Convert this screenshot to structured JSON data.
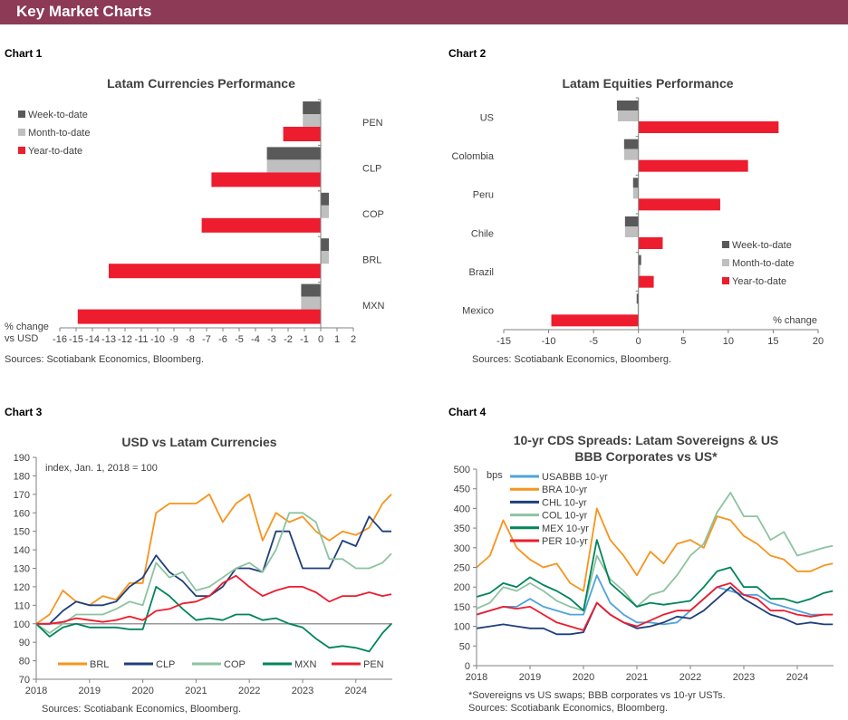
{
  "header": {
    "title": "Key Market Charts",
    "color": "#8C3A55"
  },
  "charts_labels": [
    "Chart 1",
    "Chart 2",
    "Chart 3",
    "Chart 4"
  ],
  "colors": {
    "week": "#595959",
    "month": "#BFBFBF",
    "ytd": "#ED1C2E"
  },
  "chart_data": [
    {
      "type": "bar",
      "orientation": "horizontal",
      "title": "Latam Currencies Performance",
      "categories": [
        "PEN",
        "CLP",
        "COP",
        "BRL",
        "MXN"
      ],
      "series": [
        {
          "name": "Week-to-date",
          "color": "#595959",
          "values": [
            -1.1,
            -3.3,
            0.5,
            0.5,
            -1.2
          ]
        },
        {
          "name": "Month-to-date",
          "color": "#BFBFBF",
          "values": [
            -1.1,
            -3.3,
            0.5,
            0.5,
            -1.2
          ]
        },
        {
          "name": "Year-to-date",
          "color": "#ED1C2E",
          "values": [
            -2.3,
            -6.7,
            -7.3,
            -13.0,
            -14.9
          ]
        }
      ],
      "xlabel": [
        "% change",
        "vs USD"
      ],
      "xlim": [
        -16,
        2
      ],
      "xticks": [
        -16,
        -15,
        -14,
        -13,
        -12,
        -11,
        -10,
        -9,
        -8,
        -7,
        -6,
        -5,
        -4,
        -3,
        -2,
        -1,
        0,
        1,
        2
      ],
      "legend": "top-left",
      "source": "Sources: Scotiabank Economics, Bloomberg."
    },
    {
      "type": "bar",
      "orientation": "horizontal",
      "title": "Latam Equities Performance",
      "categories": [
        "US",
        "Colombia",
        "Peru",
        "Chile",
        "Brazil",
        "Mexico"
      ],
      "series": [
        {
          "name": "Week-to-date",
          "color": "#595959",
          "values": [
            -2.4,
            -1.6,
            -0.6,
            -1.5,
            0.3,
            -0.2
          ]
        },
        {
          "name": "Month-to-date",
          "color": "#BFBFBF",
          "values": [
            -2.3,
            -1.6,
            -0.6,
            -1.5,
            0.2,
            -0.1
          ]
        },
        {
          "name": "Year-to-date",
          "color": "#ED1C2E",
          "values": [
            15.6,
            12.2,
            9.1,
            2.7,
            1.7,
            -9.7
          ]
        }
      ],
      "xlabel": "% change",
      "xlim": [
        -15,
        20
      ],
      "xticks": [
        -15,
        -10,
        -5,
        0,
        5,
        10,
        15,
        20
      ],
      "legend": "bottom-right",
      "source": "Sources: Scotiabank Economics, Bloomberg."
    },
    {
      "type": "line",
      "title": "USD vs Latam Currencies",
      "annotation": "index, Jan. 1, 2018 = 100",
      "x": [
        "2018-01",
        "2018-04",
        "2018-07",
        "2018-10",
        "2019-01",
        "2019-04",
        "2019-07",
        "2019-10",
        "2020-01",
        "2020-04",
        "2020-07",
        "2020-10",
        "2021-01",
        "2021-04",
        "2021-07",
        "2021-10",
        "2022-01",
        "2022-04",
        "2022-07",
        "2022-10",
        "2023-01",
        "2023-04",
        "2023-07",
        "2023-10",
        "2024-01",
        "2024-04",
        "2024-07",
        "2024-09"
      ],
      "series": [
        {
          "name": "BRL",
          "color": "#F7941D",
          "values": [
            100,
            105,
            118,
            112,
            110,
            115,
            113,
            122,
            122,
            160,
            165,
            165,
            165,
            170,
            155,
            165,
            170,
            145,
            160,
            155,
            158,
            150,
            145,
            150,
            148,
            152,
            165,
            170
          ]
        },
        {
          "name": "CLP",
          "color": "#1F3F7A",
          "values": [
            100,
            100,
            107,
            112,
            110,
            110,
            112,
            120,
            125,
            137,
            128,
            123,
            115,
            115,
            120,
            130,
            130,
            128,
            150,
            150,
            130,
            130,
            130,
            145,
            142,
            158,
            150,
            150
          ]
        },
        {
          "name": "COP",
          "color": "#8DC3A0",
          "values": [
            100,
            95,
            100,
            105,
            105,
            105,
            108,
            112,
            110,
            133,
            125,
            128,
            118,
            120,
            125,
            130,
            133,
            128,
            140,
            160,
            160,
            155,
            135,
            135,
            130,
            130,
            133,
            138
          ]
        },
        {
          "name": "MXN",
          "color": "#00845A",
          "values": [
            100,
            93,
            98,
            100,
            98,
            98,
            98,
            97,
            97,
            120,
            115,
            108,
            102,
            103,
            102,
            105,
            105,
            102,
            103,
            100,
            98,
            92,
            87,
            88,
            87,
            85,
            95,
            100
          ]
        },
        {
          "name": "PEN",
          "color": "#ED1C2E",
          "values": [
            100,
            100,
            101,
            103,
            102,
            101,
            102,
            104,
            102,
            107,
            108,
            111,
            112,
            115,
            122,
            126,
            120,
            115,
            118,
            120,
            120,
            117,
            112,
            115,
            115,
            117,
            115,
            116
          ]
        }
      ],
      "reference_line": 100,
      "ylim": [
        70,
        190
      ],
      "yticks": [
        70,
        80,
        90,
        100,
        110,
        120,
        130,
        140,
        150,
        160,
        170,
        180,
        190
      ],
      "xticks": [
        "2018",
        "2019",
        "2020",
        "2021",
        "2022",
        "2023",
        "2024"
      ],
      "legend": "bottom",
      "source": "Sources: Scotiabank Economics, Bloomberg."
    },
    {
      "type": "line",
      "title": [
        "10-yr CDS Spreads: Latam Sovereigns & US",
        "BBB Corporates vs US*"
      ],
      "ylabel": "bps",
      "x": [
        "2018-01",
        "2018-04",
        "2018-07",
        "2018-10",
        "2019-01",
        "2019-04",
        "2019-07",
        "2019-10",
        "2020-01",
        "2020-04",
        "2020-07",
        "2020-10",
        "2021-01",
        "2021-04",
        "2021-07",
        "2021-10",
        "2022-01",
        "2022-04",
        "2022-07",
        "2022-10",
        "2023-01",
        "2023-04",
        "2023-07",
        "2023-10",
        "2024-01",
        "2024-04",
        "2024-07",
        "2024-09"
      ],
      "series": [
        {
          "name": "USABBB 10-yr",
          "color": "#4FA3DB",
          "values": [
            130,
            140,
            150,
            150,
            170,
            150,
            140,
            130,
            130,
            230,
            160,
            130,
            110,
            110,
            105,
            110,
            140,
            170,
            200,
            190,
            180,
            180,
            160,
            150,
            140,
            130,
            130,
            130
          ]
        },
        {
          "name": "BRA 10-yr",
          "color": "#F7941D",
          "values": [
            250,
            280,
            370,
            300,
            270,
            250,
            260,
            210,
            190,
            400,
            320,
            280,
            230,
            290,
            260,
            310,
            320,
            300,
            380,
            370,
            330,
            310,
            280,
            270,
            240,
            240,
            255,
            260
          ]
        },
        {
          "name": "CHL 10-yr",
          "color": "#1F3F7A",
          "values": [
            95,
            100,
            105,
            100,
            95,
            95,
            80,
            80,
            85,
            160,
            130,
            110,
            95,
            100,
            110,
            125,
            120,
            140,
            170,
            200,
            170,
            150,
            130,
            120,
            105,
            110,
            105,
            105
          ]
        },
        {
          "name": "COL 10-yr",
          "color": "#8DC3A0",
          "values": [
            145,
            160,
            200,
            190,
            210,
            190,
            165,
            150,
            140,
            280,
            220,
            190,
            150,
            180,
            190,
            230,
            280,
            310,
            390,
            440,
            380,
            380,
            320,
            340,
            280,
            290,
            300,
            305
          ]
        },
        {
          "name": "MEX 10-yr",
          "color": "#00845A",
          "values": [
            175,
            185,
            210,
            200,
            225,
            205,
            190,
            170,
            140,
            320,
            210,
            180,
            150,
            160,
            155,
            160,
            165,
            200,
            240,
            250,
            200,
            200,
            170,
            170,
            160,
            170,
            185,
            190
          ]
        },
        {
          "name": "PER 10-yr",
          "color": "#ED1C2E",
          "values": [
            130,
            140,
            150,
            145,
            150,
            130,
            110,
            100,
            90,
            160,
            130,
            110,
            100,
            115,
            130,
            140,
            140,
            170,
            200,
            210,
            180,
            170,
            140,
            140,
            130,
            125,
            130,
            130
          ]
        }
      ],
      "ylim": [
        0,
        500
      ],
      "yticks": [
        0,
        50,
        100,
        150,
        200,
        250,
        300,
        350,
        400,
        450,
        500
      ],
      "xticks": [
        "2018",
        "2019",
        "2020",
        "2021",
        "2022",
        "2023",
        "2024"
      ],
      "legend": "top-left",
      "footnote": "*Sovereigns vs US swaps; BBB corporates vs 10-yr USTs.",
      "source": "Sources: Scotiabank Economics, Bloomberg."
    }
  ]
}
